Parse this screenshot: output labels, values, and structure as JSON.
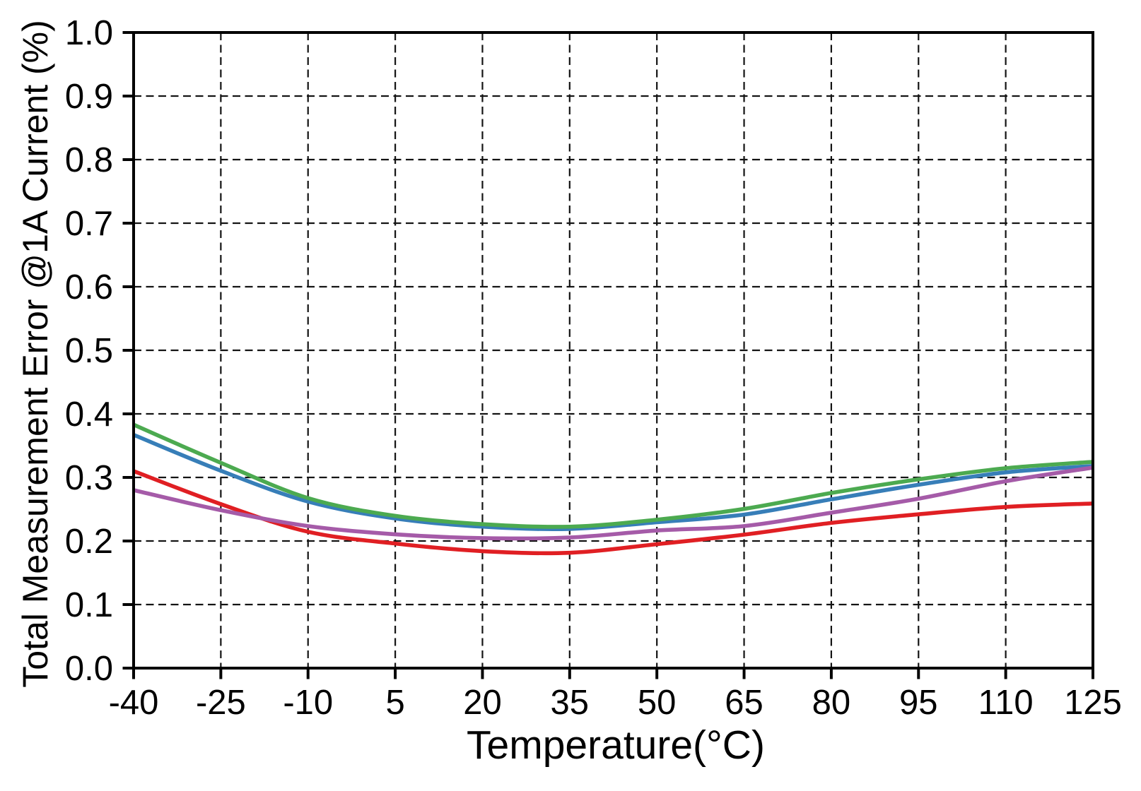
{
  "chart_data": {
    "type": "line",
    "title": "",
    "xlabel": "Temperature(°C)",
    "ylabel": "Total Measurement Error @1A Current (%)",
    "xlim": [
      -40,
      125
    ],
    "ylim": [
      0.0,
      1.0
    ],
    "x_ticks": [
      -40,
      -25,
      -10,
      5,
      20,
      35,
      50,
      65,
      80,
      95,
      110,
      125
    ],
    "x_tick_labels": [
      "-40",
      "-25",
      "-10",
      "5",
      "20",
      "35",
      "50",
      "65",
      "80",
      "95",
      "110",
      "125"
    ],
    "y_ticks": [
      0.0,
      0.1,
      0.2,
      0.3,
      0.4,
      0.5,
      0.6,
      0.7,
      0.8,
      0.9,
      1.0
    ],
    "y_tick_labels": [
      "0.0",
      "0.1",
      "0.2",
      "0.3",
      "0.4",
      "0.5",
      "0.6",
      "0.7",
      "0.8",
      "0.9",
      "1.0"
    ],
    "grid": "dashed",
    "legend": "none",
    "colors": {
      "axis": "#000000",
      "grid": "#141414",
      "background": "#ffffff"
    },
    "series": [
      {
        "name": "red",
        "color": "#e01f23",
        "x": [
          -40,
          -25,
          -10,
          5,
          20,
          35,
          50,
          65,
          80,
          95,
          110,
          125
        ],
        "values": [
          0.31,
          0.258,
          0.2145,
          0.196,
          0.184,
          0.1815,
          0.195,
          0.21,
          0.2285,
          0.242,
          0.2535,
          0.259
        ]
      },
      {
        "name": "blue",
        "color": "#377eb8",
        "x": [
          -40,
          -25,
          -10,
          5,
          20,
          35,
          50,
          65,
          80,
          95,
          110,
          125
        ],
        "values": [
          0.367,
          0.3105,
          0.262,
          0.2355,
          0.2225,
          0.219,
          0.2295,
          0.2415,
          0.2655,
          0.2885,
          0.308,
          0.318
        ]
      },
      {
        "name": "green",
        "color": "#4caa50",
        "x": [
          -40,
          -25,
          -10,
          5,
          20,
          35,
          50,
          65,
          80,
          95,
          110,
          125
        ],
        "values": [
          0.383,
          0.323,
          0.2675,
          0.2395,
          0.2265,
          0.2225,
          0.2335,
          0.2505,
          0.2755,
          0.297,
          0.3145,
          0.3245
        ]
      },
      {
        "name": "purple",
        "color": "#a55ba8",
        "x": [
          -40,
          -25,
          -10,
          5,
          20,
          35,
          50,
          65,
          80,
          95,
          110,
          125
        ],
        "values": [
          0.28,
          0.2485,
          0.2235,
          0.2105,
          0.2045,
          0.2055,
          0.2165,
          0.2235,
          0.2445,
          0.2665,
          0.294,
          0.3155
        ]
      }
    ]
  }
}
